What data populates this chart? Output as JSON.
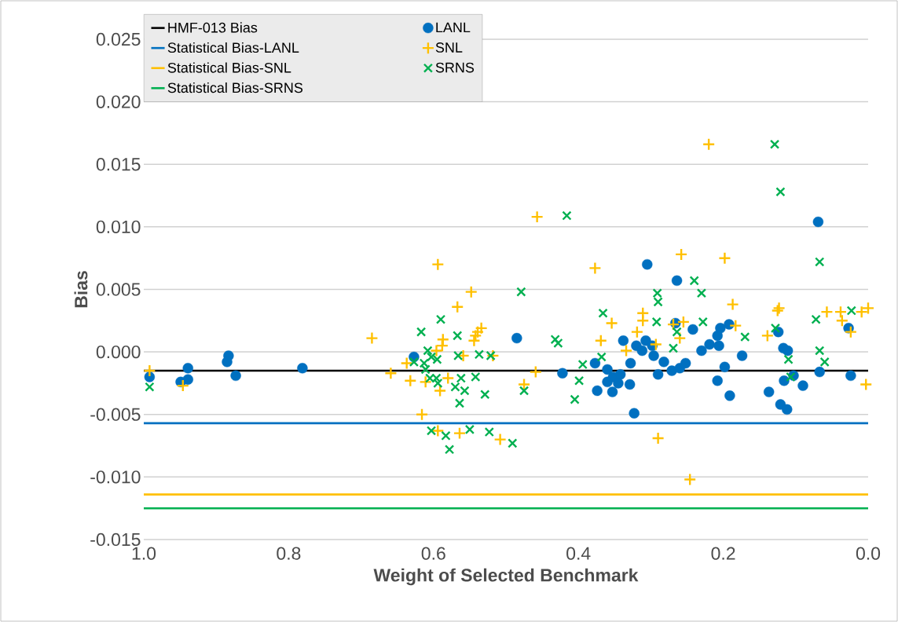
{
  "chart_data": {
    "type": "scatter",
    "xlabel": "Weight of Selected Benchmark",
    "ylabel": "Bias",
    "xlim": [
      1.0,
      0.0
    ],
    "ylim": [
      -0.015,
      0.025
    ],
    "xticks": [
      {
        "value": 1.0,
        "label": "1.0"
      },
      {
        "value": 0.8,
        "label": "0.8"
      },
      {
        "value": 0.6,
        "label": "0.6"
      },
      {
        "value": 0.4,
        "label": "0.4"
      },
      {
        "value": 0.2,
        "label": "0.2"
      },
      {
        "value": 0.0,
        "label": "0.0"
      }
    ],
    "yticks": [
      {
        "value": -0.015,
        "label": "-0.015"
      },
      {
        "value": -0.01,
        "label": "-0.010"
      },
      {
        "value": -0.005,
        "label": "-0.005"
      },
      {
        "value": 0.0,
        "label": "0.000"
      },
      {
        "value": 0.005,
        "label": "0.005"
      },
      {
        "value": 0.01,
        "label": "0.010"
      },
      {
        "value": 0.015,
        "label": "0.015"
      },
      {
        "value": 0.02,
        "label": "0.020"
      },
      {
        "value": 0.025,
        "label": "0.025"
      }
    ],
    "grid": "y",
    "legend": "top left",
    "series": [
      {
        "name": "HMF-013 Bias",
        "type": "line",
        "color": "#000000",
        "x": [
          1.0,
          0.0
        ],
        "values": [
          -0.0015,
          -0.0015
        ]
      },
      {
        "name": "Statistical Bias-LANL",
        "type": "line",
        "color": "#0070c0",
        "x": [
          1.0,
          0.0
        ],
        "values": [
          -0.0057,
          -0.0057
        ]
      },
      {
        "name": "Statistical Bias-SNL",
        "type": "line",
        "color": "#ffc000",
        "x": [
          1.0,
          0.0
        ],
        "values": [
          -0.0114,
          -0.0114
        ]
      },
      {
        "name": "Statistical Bias-SRNS",
        "type": "line",
        "color": "#00b050",
        "x": [
          1.0,
          0.0
        ],
        "values": [
          -0.0125,
          -0.0125
        ]
      },
      {
        "name": "LANL",
        "type": "scatter",
        "marker": "circle",
        "color": "#0070c0",
        "x": [
          0.992,
          0.939,
          0.949,
          0.939,
          0.883,
          0.885,
          0.873,
          0.781,
          0.627,
          0.485,
          0.305,
          0.264,
          0.242,
          0.422,
          0.377,
          0.374,
          0.353,
          0.323,
          0.338,
          0.36,
          0.352,
          0.342,
          0.36,
          0.345,
          0.329,
          0.328,
          0.32,
          0.312,
          0.307,
          0.296,
          0.29,
          0.282,
          0.271,
          0.26,
          0.252,
          0.266,
          0.23,
          0.298,
          0.219,
          0.206,
          0.208,
          0.204,
          0.192,
          0.198,
          0.208,
          0.191,
          0.174,
          0.124,
          0.117,
          0.111,
          0.103,
          0.116,
          0.09,
          0.137,
          0.121,
          0.112,
          0.069,
          0.067,
          0.027,
          0.024
        ],
        "values": [
          -0.002,
          -0.0013,
          -0.0024,
          -0.0022,
          -0.0003,
          -0.0008,
          -0.0019,
          -0.0013,
          -0.0004,
          0.0011,
          0.007,
          0.0057,
          0.0018,
          -0.0017,
          -0.0009,
          -0.0031,
          -0.0032,
          -0.0049,
          0.0009,
          -0.0014,
          -0.002,
          -0.0018,
          -0.0024,
          -0.0025,
          -0.0026,
          -0.0009,
          0.0005,
          0.0001,
          0.0009,
          -0.0003,
          -0.0018,
          -0.0008,
          -0.0015,
          -0.0013,
          -0.0009,
          0.0023,
          0.0001,
          0.0005,
          0.0006,
          0.0005,
          0.0013,
          0.0019,
          0.0022,
          -0.0012,
          -0.0023,
          -0.0035,
          -0.0003,
          0.0016,
          0.0003,
          0.0001,
          -0.0019,
          -0.0023,
          -0.0027,
          -0.0032,
          -0.0042,
          -0.0046,
          0.0104,
          -0.0016,
          0.0019,
          -0.0019
        ]
      },
      {
        "name": "SNL",
        "type": "scatter",
        "marker": "plus",
        "color": "#ffc000",
        "x": [
          0.992,
          0.946,
          0.685,
          0.594,
          0.548,
          0.567,
          0.534,
          0.539,
          0.542,
          0.544,
          0.587,
          0.588,
          0.596,
          0.637,
          0.659,
          0.632,
          0.611,
          0.591,
          0.58,
          0.559,
          0.518,
          0.459,
          0.475,
          0.616,
          0.564,
          0.594,
          0.508,
          0.457,
          0.377,
          0.258,
          0.354,
          0.369,
          0.334,
          0.311,
          0.311,
          0.319,
          0.293,
          0.269,
          0.255,
          0.26,
          0.29,
          0.22,
          0.198,
          0.187,
          0.183,
          0.139,
          0.123,
          0.125,
          0.057,
          0.038,
          0.036,
          0.024,
          0.009,
          0.0,
          0.003,
          0.246
        ],
        "values": [
          -0.0015,
          -0.0027,
          0.0011,
          0.007,
          0.0048,
          0.0036,
          0.0019,
          0.0016,
          0.0013,
          0.0009,
          0.001,
          0.0005,
          0.0001,
          -0.0009,
          -0.0017,
          -0.0023,
          -0.0024,
          -0.0031,
          -0.0021,
          -0.0003,
          -0.0003,
          -0.0016,
          -0.0026,
          -0.005,
          -0.0065,
          -0.0063,
          -0.007,
          0.0108,
          0.0067,
          0.0078,
          0.0023,
          0.0009,
          0.0001,
          0.0031,
          0.0025,
          0.0016,
          0.0006,
          0.0022,
          0.0024,
          0.0011,
          -0.0069,
          0.0166,
          0.0075,
          0.0038,
          0.0021,
          0.0013,
          0.0035,
          0.0033,
          0.0032,
          0.0032,
          0.0025,
          0.0016,
          0.0032,
          0.0035,
          -0.0026,
          -0.0102
        ]
      },
      {
        "name": "SRNS",
        "type": "scatter",
        "marker": "cross",
        "color": "#00b050",
        "x": [
          0.992,
          0.479,
          0.59,
          0.617,
          0.567,
          0.608,
          0.603,
          0.595,
          0.566,
          0.537,
          0.521,
          0.627,
          0.613,
          0.611,
          0.605,
          0.596,
          0.594,
          0.562,
          0.57,
          0.557,
          0.542,
          0.529,
          0.564,
          0.475,
          0.603,
          0.583,
          0.578,
          0.55,
          0.523,
          0.491,
          0.416,
          0.432,
          0.428,
          0.394,
          0.399,
          0.405,
          0.366,
          0.368,
          0.291,
          0.29,
          0.292,
          0.269,
          0.264,
          0.24,
          0.23,
          0.228,
          0.17,
          0.129,
          0.121,
          0.067,
          0.128,
          0.11,
          0.107,
          0.072,
          0.067,
          0.06,
          0.023
        ],
        "values": [
          -0.0028,
          0.0048,
          0.0026,
          0.0016,
          0.0013,
          0.0001,
          -0.0004,
          -0.0006,
          -0.0003,
          -0.0002,
          -0.0003,
          -0.0008,
          -0.0009,
          -0.0014,
          -0.0021,
          -0.0021,
          -0.0025,
          -0.0021,
          -0.0028,
          -0.0031,
          -0.002,
          -0.0034,
          -0.0041,
          -0.0031,
          -0.0063,
          -0.0067,
          -0.0078,
          -0.0062,
          -0.0064,
          -0.0073,
          0.0109,
          0.001,
          0.0007,
          -0.001,
          -0.0023,
          -0.0038,
          0.0031,
          -0.0004,
          0.0047,
          0.004,
          0.0024,
          0.0003,
          0.0016,
          0.0057,
          0.0047,
          0.0024,
          0.0012,
          0.0166,
          0.0128,
          0.0072,
          0.0019,
          -0.0006,
          -0.002,
          0.0026,
          0.0001,
          -0.0008,
          0.0033
        ]
      }
    ]
  }
}
